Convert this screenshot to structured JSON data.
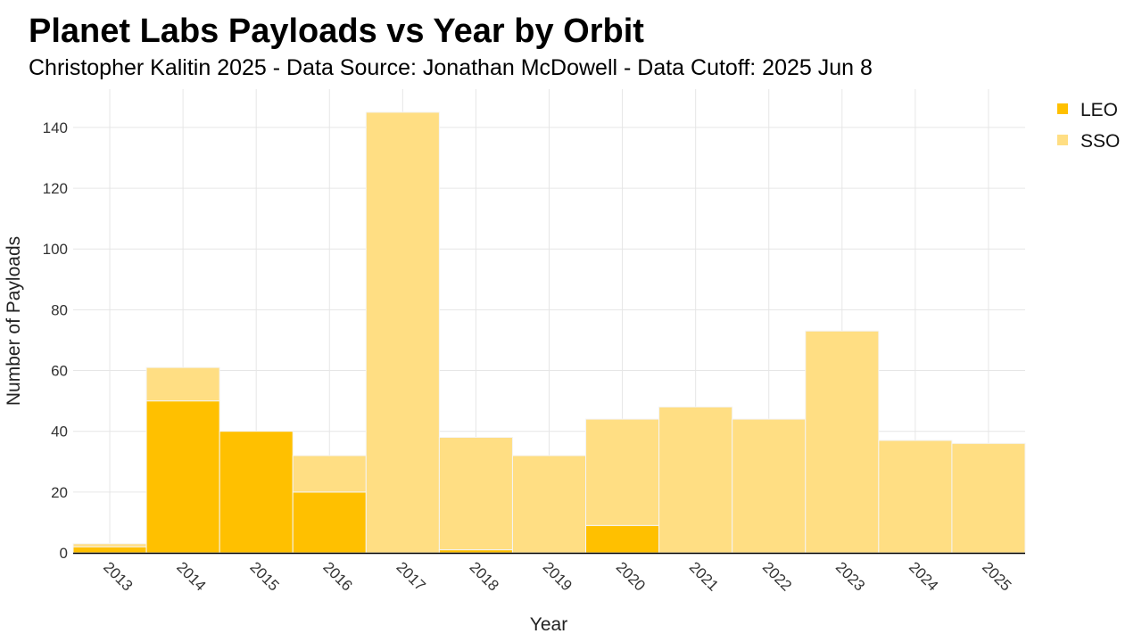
{
  "chart_data": {
    "type": "bar",
    "stacked": true,
    "title": "Planet Labs Payloads vs Year by Orbit",
    "subtitle": "Christopher Kalitin 2025 - Data Source: Jonathan McDowell - Data Cutoff: 2025 Jun 8",
    "xlabel": "Year",
    "ylabel": "Number of Payloads",
    "categories": [
      "2013",
      "2014",
      "2015",
      "2016",
      "2017",
      "2018",
      "2019",
      "2020",
      "2021",
      "2022",
      "2023",
      "2024",
      "2025"
    ],
    "series": [
      {
        "name": "LEO",
        "color": "#FFC000",
        "values": [
          2,
          50,
          40,
          20,
          0,
          1,
          0,
          9,
          0,
          0,
          0,
          0,
          0
        ]
      },
      {
        "name": "SSO",
        "color": "#FFDE83",
        "values": [
          1,
          11,
          0,
          12,
          145,
          37,
          32,
          35,
          48,
          44,
          73,
          37,
          36
        ]
      }
    ],
    "yticks": [
      0,
      20,
      40,
      60,
      80,
      100,
      120,
      140
    ],
    "ylim": [
      0,
      152.6
    ],
    "grid": true,
    "legend_position": "top-right"
  }
}
